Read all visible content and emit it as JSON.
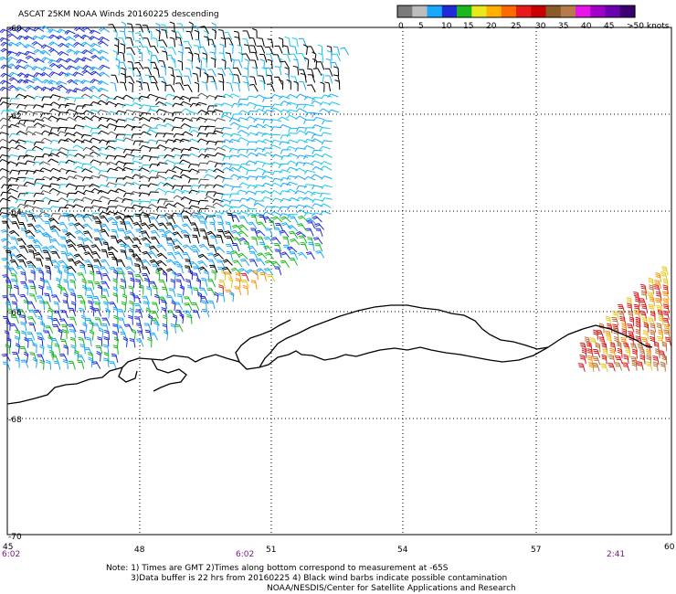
{
  "title": "ASCAT 25KM NOAA Winds 20160225 descending",
  "legend": {
    "labels": [
      "0",
      "5",
      "10",
      "15",
      "20",
      "25",
      "30",
      "35",
      "40",
      "45",
      ">50 knots"
    ],
    "colors": [
      "#7a7a7a",
      "#bdbdbd",
      "#19a8ff",
      "#1f2bd6",
      "#19b81f",
      "#e8e81a",
      "#ffb000",
      "#ff6a00",
      "#e81a1a",
      "#c80000",
      "#8a5a2a",
      "#b87a4a",
      "#e815e8",
      "#a000c8",
      "#6a00b0",
      "#3a0070"
    ]
  },
  "axes": {
    "lat_labels": [
      "-60",
      "-62",
      "-64",
      "-66",
      "-68",
      "-70"
    ],
    "lon_labels": [
      "45",
      "48",
      "51",
      "54",
      "57",
      "60"
    ]
  },
  "times": [
    "6:02",
    "6:02",
    "2:41"
  ],
  "notes": [
    "Note: 1) Times are GMT 2)Times along bottom correspond to measurement at -65S",
    "3)Data buffer is 22 hrs from 20160225 4) Black wind barbs indicate possible contamination",
    "NOAA/NESDIS/Center for Satellite Applications and Research"
  ],
  "colors": {
    "grid": "#000000",
    "coast": "#000000",
    "time_text": "#7a1a8a"
  }
}
